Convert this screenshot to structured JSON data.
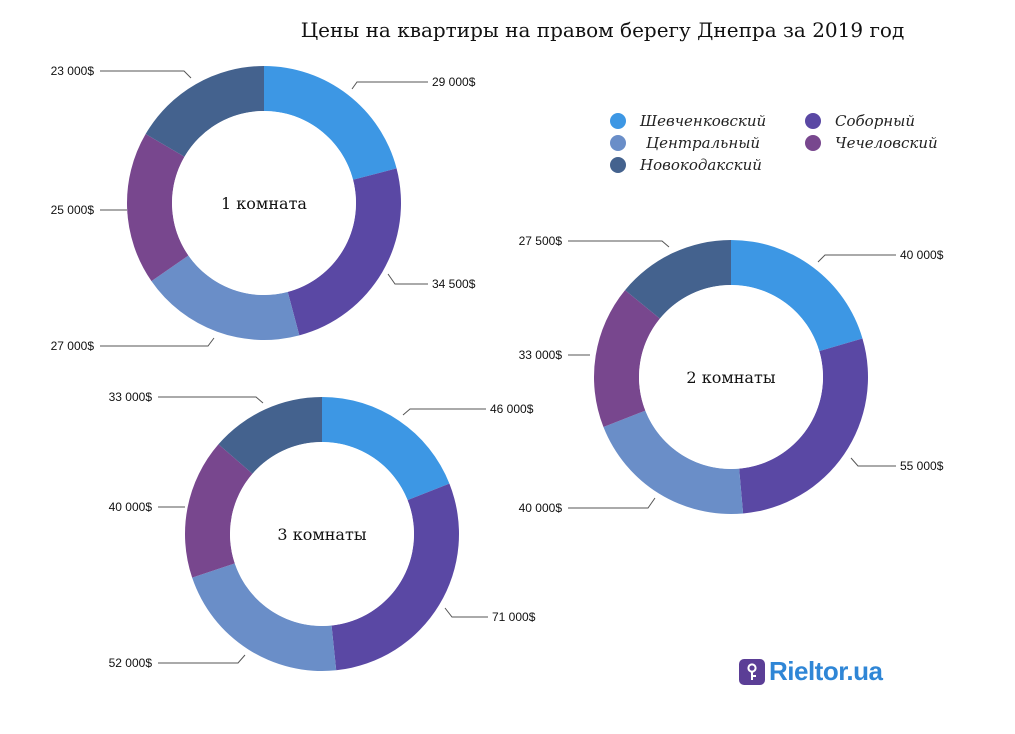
{
  "title": "Цены на квартиры на правом берегу Днепра за 2019 год",
  "legend": [
    {
      "name": "Шевченковский",
      "color": "#3d97e4"
    },
    {
      "name": "Соборный",
      "color": "#5a48a4"
    },
    {
      "name": "Центральный",
      "color": "#6a8ec8"
    },
    {
      "name": "Чечеловский",
      "color": "#78478e"
    },
    {
      "name": "Новокодакский",
      "color": "#44628e"
    }
  ],
  "chart_data": [
    {
      "type": "donut",
      "center_label": "1 комната",
      "categories": [
        "Шевченковский",
        "Соборный",
        "Центральный",
        "Чечеловский",
        "Новокодакский"
      ],
      "values": [
        29000,
        34500,
        27000,
        25000,
        23000
      ],
      "labels": [
        "29 000$",
        "34 500$",
        "27 000$",
        "25 000$",
        "23 000$"
      ]
    },
    {
      "type": "donut",
      "center_label": "2 комнаты",
      "categories": [
        "Шевченковский",
        "Соборный",
        "Центральный",
        "Чечеловский",
        "Новокодакский"
      ],
      "values": [
        40000,
        55000,
        40000,
        33000,
        27500
      ],
      "labels": [
        "40 000$",
        "55 000$",
        "40 000$",
        "33 000$",
        "27 500$"
      ]
    },
    {
      "type": "donut",
      "center_label": "3 комнаты",
      "categories": [
        "Шевченковский",
        "Соборный",
        "Центральный",
        "Чечеловский",
        "Новокодакский"
      ],
      "values": [
        46000,
        71000,
        52000,
        40000,
        33000
      ],
      "labels": [
        "46 000$",
        "71 000$",
        "52 000$",
        "40 000$",
        "33 000$"
      ]
    }
  ],
  "logo": {
    "text": "Rieltor.ua",
    "mark": "R"
  }
}
